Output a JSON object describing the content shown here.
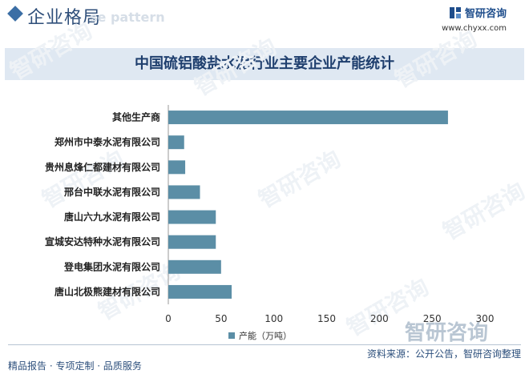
{
  "header": {
    "title": "企业格局",
    "watermark": "se pattern",
    "brand_name": "智研咨询",
    "brand_url": "www.chyxx.com"
  },
  "chart_data": {
    "type": "bar",
    "orientation": "horizontal",
    "title": "中国硫铝酸盐水泥行业主要企业产能统计",
    "categories": [
      "其他生产商",
      "郑州市中泰水泥有限公司",
      "贵州息烽仁都建材有限公司",
      "邢台中联水泥有限公司",
      "唐山六九水泥有限公司",
      "宣城安达特种水泥有限公司",
      "登电集团水泥有限公司",
      "唐山北极熊建材有限公司"
    ],
    "series": [
      {
        "name": "产能（万吨）",
        "values": [
          265,
          15,
          16,
          30,
          45,
          45,
          50,
          60
        ]
      }
    ],
    "xlim": [
      0,
      300
    ],
    "xticks": [
      0,
      50,
      100,
      150,
      200,
      250,
      300
    ],
    "legend_position": "bottom",
    "grid": false,
    "bar_color": "#5b8ea6"
  },
  "footer": {
    "left": "精品报告 · 专项定制 · 品质服务",
    "right": "资料来源：公开公告，智研咨询整理"
  },
  "watermark_text": "智研咨询"
}
